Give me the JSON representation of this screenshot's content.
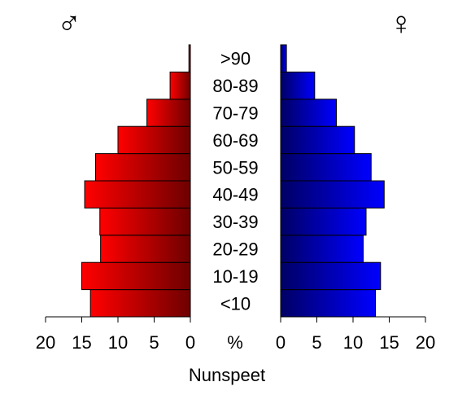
{
  "chart_data": {
    "type": "bar",
    "subtype": "population-pyramid",
    "orientation": "horizontal",
    "categories": [
      "<10",
      "10-19",
      "20-29",
      "30-39",
      "40-49",
      "50-59",
      "60-69",
      "70-79",
      "80-89",
      ">90"
    ],
    "series": [
      {
        "name": "♂",
        "side": "left",
        "color_light": "#ff0000",
        "color_dark": "#6e0000",
        "values": [
          13.8,
          15.0,
          12.4,
          12.5,
          14.6,
          13.1,
          10.0,
          6.0,
          2.8,
          0.2
        ]
      },
      {
        "name": "♀",
        "side": "right",
        "color_light": "#0000ff",
        "color_dark": "#000064",
        "values": [
          13.1,
          13.8,
          11.4,
          11.8,
          14.3,
          12.5,
          10.2,
          7.7,
          4.7,
          0.8
        ]
      }
    ],
    "xlim": [
      0,
      20
    ],
    "left_ticks": [
      "20",
      "15",
      "10",
      "5",
      "0"
    ],
    "right_ticks": [
      "0",
      "5",
      "10",
      "15",
      "20"
    ],
    "unit_label": "%",
    "xlabel": "Nunspeet",
    "male_symbol": "♂",
    "female_symbol": "♀",
    "grid": false
  }
}
